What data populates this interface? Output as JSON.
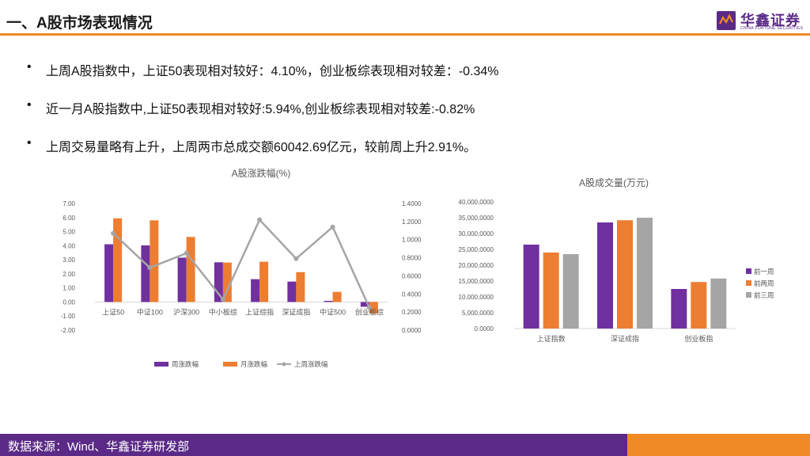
{
  "header": {
    "title": "一、A股市场表现情况"
  },
  "logo": {
    "name": "华鑫证券",
    "sub": "CHINA FORTUNE SECURITIES",
    "icon": "logo-icon"
  },
  "bullets": [
    "上周A股指数中，上证50表现相对较好：4.10%，创业板综表现相对较差：-0.34%",
    "近一月A股指数中,上证50表现相对较好:5.94%,创业板综表现相对较差:-0.82%",
    "上周交易量略有上升，上周两市总成交额60042.69亿元，较前周上升2.91%。"
  ],
  "bullet_symbol": "•",
  "footer": {
    "source": "数据来源：Wind、华鑫证券研发部"
  },
  "colors": {
    "purple": "#7030a0",
    "orange": "#ed7d31",
    "gray": "#a5a5a5",
    "accent": "#f08a24",
    "brand": "#5b2a86"
  },
  "chart_data": [
    {
      "type": "bar",
      "title": "A股涨跌幅(%)",
      "categories": [
        "上证50",
        "中证100",
        "沪深300",
        "中小板综",
        "上证综指",
        "深证成指",
        "中证500",
        "创业板综"
      ],
      "series": [
        {
          "name": "周涨跌幅",
          "type": "bar",
          "axis": "left",
          "values": [
            4.1,
            4.02,
            3.15,
            2.82,
            1.62,
            1.45,
            0.08,
            -0.34
          ]
        },
        {
          "name": "月涨跌幅",
          "type": "bar",
          "axis": "left",
          "values": [
            5.94,
            5.8,
            4.62,
            2.8,
            2.86,
            2.12,
            0.72,
            -0.82
          ]
        },
        {
          "name": "上周涨跌幅",
          "type": "line",
          "axis": "right",
          "values": [
            1.07,
            0.69,
            0.85,
            0.34,
            1.22,
            0.79,
            1.14,
            0.25
          ]
        }
      ],
      "ylim": [
        -2.0,
        7.0
      ],
      "yticks": [
        "7.00",
        "6.00",
        "5.00",
        "4.00",
        "3.00",
        "2.00",
        "1.00",
        "0.00",
        "-1.00",
        "-2.00"
      ],
      "y2lim": [
        0,
        1.4
      ],
      "y2ticks": [
        "1.4000",
        "1.2000",
        "1.0000",
        "0.8000",
        "0.6000",
        "0.4000",
        "0.2000",
        "0.0000"
      ],
      "legend": "bottom",
      "grid": false
    },
    {
      "type": "bar",
      "title": "A股成交量(万元)",
      "categories": [
        "上证指数",
        "深证成指",
        "创业板指"
      ],
      "series": [
        {
          "name": "前一周",
          "values": [
            26500000,
            33500000,
            12500000
          ]
        },
        {
          "name": "前两周",
          "values": [
            24000000,
            34200000,
            14700000
          ]
        },
        {
          "name": "前三周",
          "values": [
            23500000,
            35000000,
            15800000
          ]
        }
      ],
      "ylim": [
        0,
        40000000
      ],
      "yticks": [
        "40,000,0000",
        "35,000,0000",
        "30,000,0000",
        "25,000,0000",
        "20,000,0000",
        "15,000,0000",
        "10,000,0000",
        "5,000,0000",
        "0.0000"
      ],
      "legend": "right",
      "grid": false
    }
  ]
}
